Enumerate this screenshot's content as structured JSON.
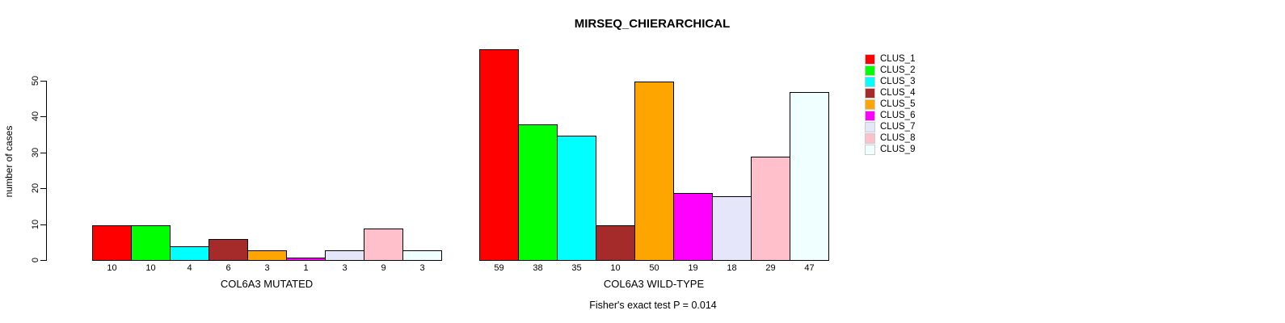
{
  "chart_data": {
    "type": "bar",
    "title": "MIRSEQ_CHIERARCHICAL",
    "ylabel": "number of cases",
    "xlabel": "",
    "ylim": [
      0,
      59
    ],
    "yticks": [
      0,
      10,
      20,
      30,
      40,
      50
    ],
    "grid": false,
    "categories": [
      "CLUS_1",
      "CLUS_2",
      "CLUS_3",
      "CLUS_4",
      "CLUS_5",
      "CLUS_6",
      "CLUS_7",
      "CLUS_8",
      "CLUS_9"
    ],
    "colors": [
      "#FF0000",
      "#00FF00",
      "#00FFFF",
      "#A52A2A",
      "#FFA500",
      "#FF00FF",
      "#E6E6FA",
      "#FFC0CB",
      "#F0FFFF"
    ],
    "groups": [
      {
        "label": "COL6A3 MUTATED",
        "values": [
          10,
          10,
          4,
          6,
          3,
          1,
          3,
          9,
          3
        ]
      },
      {
        "label": "COL6A3 WILD-TYPE",
        "values": [
          59,
          38,
          35,
          10,
          50,
          19,
          18,
          29,
          47
        ]
      }
    ],
    "legend": {
      "position": "right",
      "entries": [
        "CLUS_1",
        "CLUS_2",
        "CLUS_3",
        "CLUS_4",
        "CLUS_5",
        "CLUS_6",
        "CLUS_7",
        "CLUS_8",
        "CLUS_9"
      ]
    },
    "annotation": "Fisher's exact test P = 0.014",
    "bar_outline_color": "#000000",
    "background_color": "#ffffff"
  }
}
